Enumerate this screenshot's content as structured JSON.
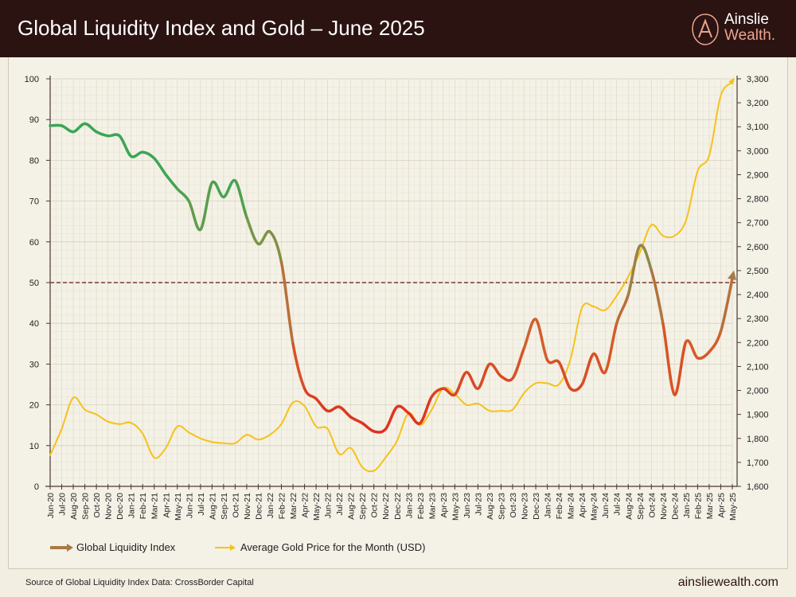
{
  "header": {
    "title": "Global Liquidity Index and Gold – June 2025",
    "logo_line1": "Ainslie",
    "logo_line2": "Wealth."
  },
  "footer": {
    "source": "Source of Global Liquidity Index Data: CrossBorder Capital",
    "website": "ainsliewealth.com"
  },
  "colors": {
    "header_bg": "#2b1311",
    "gold": "#f5c21b",
    "gli_high": "#3aa655",
    "gli_mid": "#a77a45",
    "gli_low": "#e0301e",
    "threshold": "#7a3b2e"
  },
  "chart_data": {
    "type": "line",
    "categories": [
      "Jun-20",
      "Jul-20",
      "Aug-20",
      "Sep-20",
      "Oct-20",
      "Nov-20",
      "Dec-20",
      "Jan-21",
      "Feb-21",
      "Mar-21",
      "Apr-21",
      "May-21",
      "Jun-21",
      "Jul-21",
      "Aug-21",
      "Sep-21",
      "Oct-21",
      "Nov-21",
      "Dec-21",
      "Jan-22",
      "Feb-22",
      "Mar-22",
      "Apr-22",
      "May-22",
      "Jun-22",
      "Jul-22",
      "Aug-22",
      "Sep-22",
      "Oct-22",
      "Nov-22",
      "Dec-22",
      "Jan-23",
      "Feb-23",
      "Mar-23",
      "Apr-23",
      "May-23",
      "Jun-23",
      "Jul-23",
      "Aug-23",
      "Sep-23",
      "Oct-23",
      "Nov-23",
      "Dec-23",
      "Jan-24",
      "Feb-24",
      "Mar-24",
      "Apr-24",
      "May-24",
      "Jun-24",
      "Jul-24",
      "Aug-24",
      "Sep-24",
      "Oct-24",
      "Nov-24",
      "Dec-24",
      "Jan-25",
      "Feb-25",
      "Mar-25",
      "Apr-25",
      "May-25"
    ],
    "series": [
      {
        "name": "Global Liquidity Index",
        "axis": "left",
        "values": [
          88.5,
          88.5,
          87,
          89,
          87,
          86,
          86,
          81,
          82,
          80.5,
          76.5,
          73,
          70,
          63,
          74.5,
          71,
          75,
          66,
          59.5,
          62.5,
          55,
          35,
          24,
          21.5,
          18.5,
          19.5,
          17,
          15.5,
          13.5,
          14,
          19.5,
          18,
          15.5,
          22,
          24,
          22.5,
          28,
          24,
          30,
          27,
          26.5,
          34,
          41,
          31,
          30.5,
          24,
          25,
          32.5,
          28,
          40,
          47,
          59,
          53,
          40,
          22.5,
          35.5,
          31.5,
          33,
          38,
          51
        ]
      },
      {
        "name": "Average Gold Price for the Month (USD)",
        "axis": "right",
        "values": [
          1730,
          1840,
          1970,
          1920,
          1900,
          1870,
          1860,
          1865,
          1820,
          1720,
          1760,
          1850,
          1825,
          1800,
          1785,
          1780,
          1780,
          1815,
          1795,
          1815,
          1860,
          1950,
          1935,
          1850,
          1840,
          1735,
          1760,
          1680,
          1665,
          1720,
          1790,
          1905,
          1855,
          1920,
          2010,
          1985,
          1940,
          1945,
          1915,
          1915,
          1920,
          1990,
          2030,
          2030,
          2025,
          2130,
          2345,
          2350,
          2335,
          2395,
          2475,
          2575,
          2690,
          2645,
          2645,
          2710,
          2915,
          2980,
          3230,
          3285
        ]
      }
    ],
    "left_axis": {
      "range": [
        0,
        100
      ],
      "ticks": [
        "0",
        "10",
        "20",
        "30",
        "40",
        "50",
        "60",
        "70",
        "80",
        "90",
        "100"
      ]
    },
    "right_axis": {
      "range": [
        1600,
        3300
      ],
      "ticks": [
        "1,600",
        "1,700",
        "1,800",
        "1,900",
        "2,000",
        "2,100",
        "2,200",
        "2,300",
        "2,400",
        "2,500",
        "2,600",
        "2,700",
        "2,800",
        "2,900",
        "3,000",
        "3,100",
        "3,200",
        "3,300"
      ]
    },
    "reference_line": {
      "axis": "left",
      "value": 50,
      "style": "dashed"
    },
    "grid": true,
    "legend": "bottom-left"
  }
}
